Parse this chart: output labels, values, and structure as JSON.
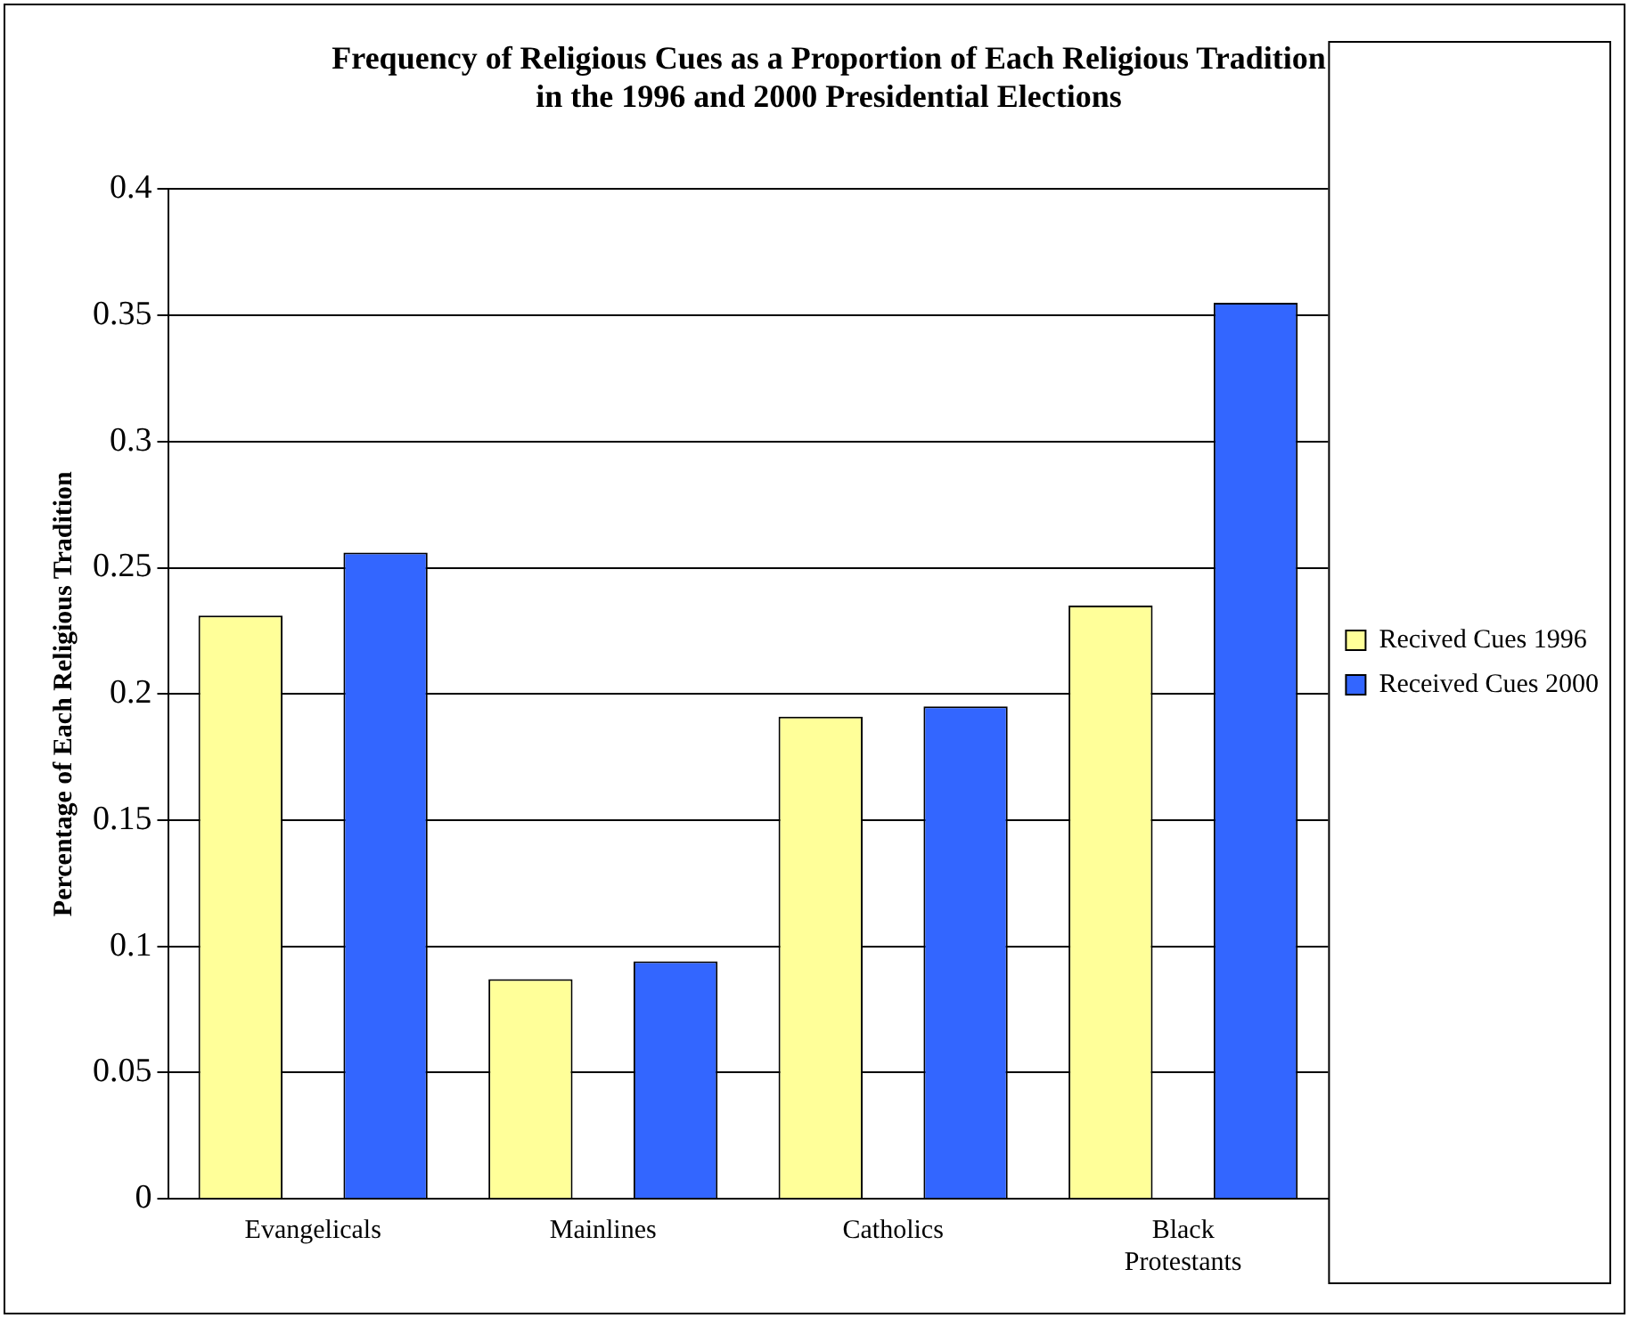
{
  "chart_data": {
    "type": "bar",
    "title": "Frequency of Religious Cues as a Proportion of Each Religious Tradition\nin the 1996 and 2000 Presidential Elections",
    "ylabel": "Percentage of Each Religious Tradition",
    "categories": [
      "Evangelicals",
      "Mainlines",
      "Catholics",
      "Black Protestants"
    ],
    "series": [
      {
        "name": "Recived Cues 1996",
        "color": "#ffff99",
        "values": [
          0.231,
          0.087,
          0.191,
          0.235
        ]
      },
      {
        "name": "Received Cues 2000",
        "color": "#3366ff",
        "values": [
          0.256,
          0.094,
          0.195,
          0.355
        ]
      }
    ],
    "ylim": [
      0,
      0.4
    ],
    "yticks": [
      0,
      0.05,
      0.1,
      0.15,
      0.2,
      0.25,
      0.3,
      0.35,
      0.4
    ],
    "grid": "y",
    "legend": "right"
  }
}
